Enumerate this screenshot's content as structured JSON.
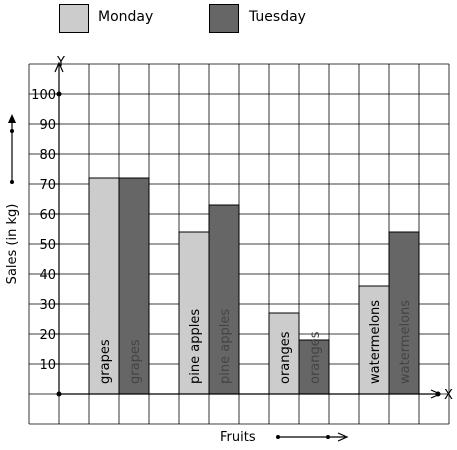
{
  "chart_data": {
    "type": "bar",
    "categories": [
      "grapes",
      "pine apples",
      "oranges",
      "watermelons"
    ],
    "series": [
      {
        "name": "Monday",
        "values": [
          72,
          54,
          27,
          36
        ],
        "color": "#cccccc",
        "text_color": "#000000"
      },
      {
        "name": "Tuesday",
        "values": [
          72,
          63,
          18,
          54
        ],
        "color": "#666666",
        "text_color": "#444444"
      }
    ],
    "xlabel": "Fruits",
    "ylabel": "Sales (in kg)",
    "x_axis_letter": "X",
    "y_axis_letter": "Y",
    "ylim": [
      0,
      100
    ],
    "yticks": [
      10,
      20,
      30,
      40,
      50,
      60,
      70,
      80,
      90,
      100
    ],
    "ytick_labels": [
      "10",
      "20",
      "30",
      "40",
      "50",
      "60",
      "70",
      "80",
      "90",
      "100"
    ],
    "grid": true,
    "legend": "top"
  }
}
